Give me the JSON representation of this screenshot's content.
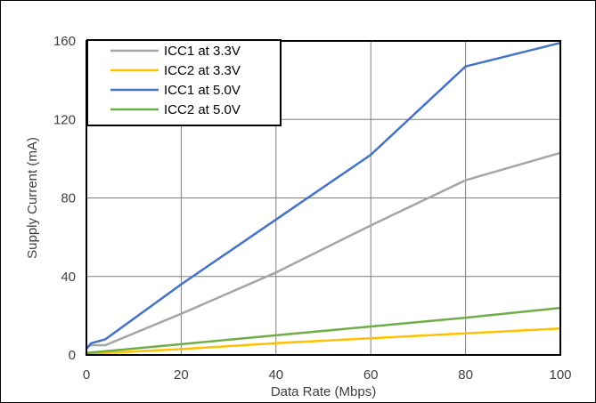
{
  "chart_data": {
    "type": "line",
    "title": "",
    "xlabel": "Data Rate (Mbps)",
    "ylabel": "Supply Current (mA)",
    "xlim": [
      0,
      100
    ],
    "ylim": [
      0,
      160
    ],
    "xticks": [
      0,
      20,
      40,
      60,
      80,
      100
    ],
    "yticks": [
      0,
      40,
      80,
      120,
      160
    ],
    "grid": true,
    "legend_position": "top-left",
    "series": [
      {
        "name": "ICC1 at 3.3V",
        "color": "#a5a5a5",
        "x": [
          0,
          1,
          4,
          20,
          40,
          60,
          80,
          100
        ],
        "y": [
          4,
          5,
          5,
          21,
          42,
          66,
          89,
          103
        ]
      },
      {
        "name": "ICC2 at 3.3V",
        "color": "#ffc000",
        "x": [
          0,
          20,
          40,
          60,
          80,
          100
        ],
        "y": [
          0.5,
          3,
          6,
          8.5,
          11,
          13.5
        ]
      },
      {
        "name": "ICC1 at 5.0V",
        "color": "#4472c4",
        "x": [
          0,
          1,
          4,
          20,
          40,
          60,
          80,
          100
        ],
        "y": [
          3,
          6,
          8,
          36,
          69,
          102,
          147,
          159
        ]
      },
      {
        "name": "ICC2 at 5.0V",
        "color": "#70ad47",
        "x": [
          0,
          20,
          40,
          60,
          80,
          100
        ],
        "y": [
          1,
          5.5,
          10,
          14.5,
          19,
          24
        ]
      }
    ]
  }
}
